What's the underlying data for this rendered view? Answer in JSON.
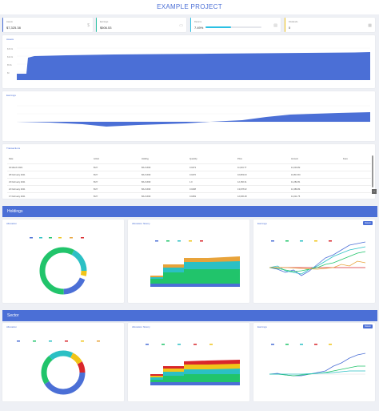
{
  "header": {
    "title": "EXAMPLE PROJECT"
  },
  "stats": [
    {
      "label": "Assets",
      "value": "$7,325.38",
      "icon": "dollar-icon",
      "accent": "#4b6fd6",
      "progress": null
    },
    {
      "label": "Earnings",
      "value": "$506.53",
      "icon": "wallet-icon",
      "accent": "#2bc0a4",
      "progress": null
    },
    {
      "label": "Returns",
      "value": "7.49%",
      "icon": "chart-icon",
      "accent": "#2bc0e4",
      "progress": 0.45
    },
    {
      "label": "Dividends",
      "value": "0",
      "icon": "calendar-icon",
      "accent": "#f0c419",
      "progress": null
    }
  ],
  "assets_card": {
    "title": "Assets"
  },
  "earnings_card": {
    "title": "Earnings"
  },
  "transactions": {
    "title": "Transactions",
    "headers": [
      "Date",
      "Action",
      "Holding",
      "Quantity",
      "Price",
      "Amount",
      "Fees"
    ],
    "rows": [
      [
        "04 March 2021",
        "BUY",
        "BA.FUND",
        "0.0473",
        "11,034.77",
        "11,004.82",
        ""
      ],
      [
        "28 February 2021",
        "BUY",
        "BA.FUND",
        "0.0476",
        "10,803.03",
        "10,813.50",
        ""
      ],
      [
        "23 February 2021",
        "BUY",
        "BA.FUND",
        "1.0",
        "12,150.31",
        "11,282.81",
        ""
      ],
      [
        "22 February 2021",
        "BUY",
        "BA.FUND",
        "0.0408",
        "13,078.62",
        "11,380.84",
        ""
      ],
      [
        "17 February 2021",
        "BUY",
        "BA.FUND",
        "0.0469",
        "12,006.48",
        "11,011.75",
        ""
      ]
    ]
  },
  "holdings_section": {
    "title": "Holdings"
  },
  "sector_section": {
    "title": "Sector"
  },
  "panels": {
    "allocation": "Allocation",
    "allocation_history": "Allocation history",
    "earnings": "Earnings",
    "earnings_button": "Return"
  },
  "colors": {
    "blue": "#4b6fd6",
    "teal": "#2bc0c4",
    "green": "#21c46b",
    "yellow": "#f0c419",
    "red": "#d9262b",
    "orange": "#e8a33a"
  },
  "chart_data": [
    {
      "type": "area",
      "title": "Assets",
      "series": [
        {
          "values": [
            0.25,
            0.25,
            0.25,
            0.6,
            0.64,
            0.66,
            0.67,
            0.68,
            0.69,
            0.7,
            0.71,
            0.72,
            0.73,
            0.74,
            0.75,
            0.76,
            0.77,
            0.78,
            0.79,
            0.8,
            0.81,
            0.82,
            0.83,
            0.84
          ]
        }
      ]
    },
    {
      "type": "area",
      "title": "Earnings",
      "series": [
        {
          "values": [
            0.0,
            0.02,
            -0.05,
            -0.08,
            -0.1,
            -0.12,
            -0.09,
            -0.06,
            -0.1,
            -0.14,
            -0.08,
            -0.04,
            -0.06,
            -0.02,
            0.0,
            0.04,
            0.08,
            0.12,
            0.18,
            0.26,
            0.33,
            0.38,
            0.42,
            0.44
          ]
        }
      ]
    }
  ]
}
